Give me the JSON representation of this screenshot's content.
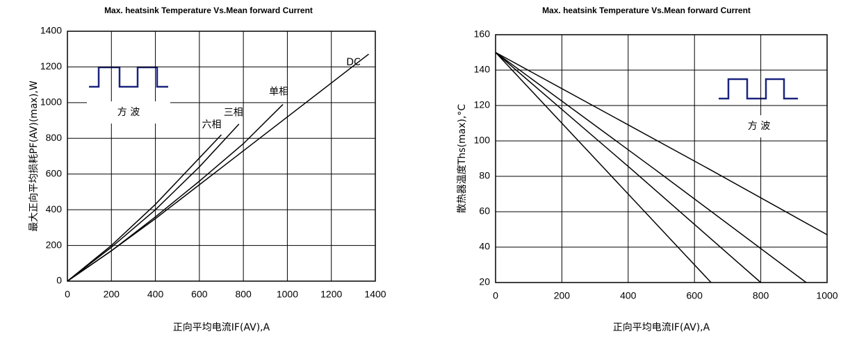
{
  "chart_data": [
    {
      "type": "line",
      "title": "Max. heatsink Temperature Vs.Mean forward Current",
      "ylabel": "最大正向平均损耗PF(AV)(max),W",
      "xlabel": "正向平均电流IF(AV),A",
      "annotation": "方 波",
      "xlim": [
        0,
        1400
      ],
      "xticks": [
        0,
        200,
        400,
        600,
        800,
        1000,
        1200,
        1400
      ],
      "ylim": [
        0,
        1400
      ],
      "yticks": [
        0,
        200,
        400,
        600,
        800,
        1000,
        1200,
        1400
      ],
      "grid": true,
      "series": [
        {
          "name": "六相",
          "color": "#000000",
          "x": [
            0,
            200,
            400,
            600,
            700
          ],
          "values": [
            0,
            200,
            430,
            690,
            820
          ]
        },
        {
          "name": "三相",
          "color": "#000000",
          "x": [
            0,
            200,
            400,
            600,
            780
          ],
          "values": [
            0,
            190,
            400,
            640,
            880
          ]
        },
        {
          "name": "单相",
          "color": "#000000",
          "x": [
            0,
            200,
            400,
            600,
            800,
            980
          ],
          "values": [
            0,
            170,
            360,
            560,
            770,
            990
          ]
        },
        {
          "name": "DC",
          "color": "#000000",
          "x": [
            0,
            200,
            400,
            600,
            800,
            1000,
            1200,
            1370
          ],
          "values": [
            0,
            170,
            350,
            540,
            730,
            920,
            1110,
            1272
          ]
        }
      ]
    },
    {
      "type": "line",
      "title": "Max. heatsink Temperature Vs.Mean forward Current",
      "ylabel": "散热器温度Ths(max),°C",
      "xlabel": "正向平均电流IF(AV),A",
      "annotation": "方 波",
      "xlim": [
        0,
        1000
      ],
      "xticks": [
        0,
        200,
        400,
        600,
        800,
        1000
      ],
      "ylim": [
        20,
        160
      ],
      "yticks": [
        20,
        40,
        60,
        80,
        100,
        120,
        140,
        160
      ],
      "grid": true,
      "series": [
        {
          "color": "#000000",
          "x": [
            0,
            330,
            650
          ],
          "values": [
            150,
            84,
            20
          ]
        },
        {
          "color": "#000000",
          "x": [
            0,
            410,
            800
          ],
          "values": [
            150,
            84,
            20
          ]
        },
        {
          "color": "#000000",
          "x": [
            0,
            480,
            937
          ],
          "values": [
            150,
            84,
            20
          ]
        },
        {
          "color": "#000000",
          "x": [
            0,
            645,
            1000
          ],
          "values": [
            150,
            84,
            47
          ]
        }
      ]
    }
  ]
}
